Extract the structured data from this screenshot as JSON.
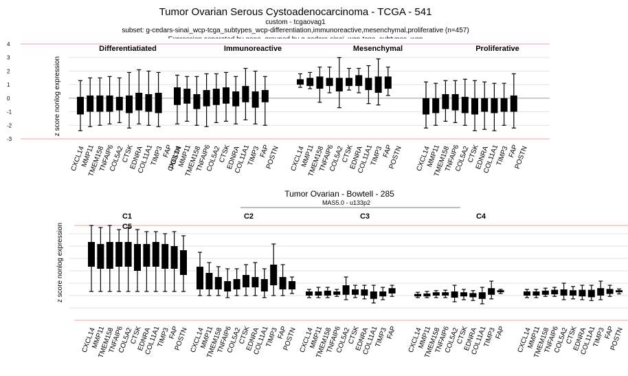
{
  "top_header": {
    "title": "Tumor Ovarian Serous Cystoadenocarcinoma - TCGA - 541",
    "line1": "custom - tcgaovag1",
    "line2": "subset: g-cedars-sinai_wcp-tcga_subtypes_wcp-differentiation,immunoreactive,mesenchymal,proliferative (n=457)",
    "line3_partial": "Expression separated by gene, grouped by g-cedars-sinai_wcp-tcga_subtypes_wcp"
  },
  "bottom_header": {
    "title": "Tumor Ovarian  - Bowtell - 285",
    "line1": "MAS5.0 - u133p2"
  },
  "colors": {
    "box": "#000000",
    "refline": "#f4a0a0",
    "grid": "#e2e2e2",
    "zero": "#9a9a9a"
  },
  "chart_data": [
    {
      "type": "boxplot",
      "ylabel": "z score nonlog expression",
      "ylim": [
        -3,
        4
      ],
      "yticks": [
        4,
        3,
        2,
        1,
        0,
        -1,
        -2,
        -3
      ],
      "genes": [
        "CXCL14",
        "MMP11",
        "TMEM158",
        "TNFAIP6",
        "COL5A2",
        "CTSK",
        "EDNRA",
        "COL11A1",
        "TIMP3",
        "FAP",
        "POSTN"
      ],
      "groups": [
        {
          "name": "Differentiatiated",
          "boxes": [
            [
              -2.4,
              -1.2,
              -0.6,
              0.1,
              1.3
            ],
            [
              -2.1,
              -1.0,
              -0.4,
              0.2,
              1.5
            ],
            [
              -2.0,
              -1.0,
              -0.5,
              0.2,
              1.5
            ],
            [
              -1.9,
              -1.0,
              -0.4,
              0.2,
              1.6
            ],
            [
              -1.8,
              -0.9,
              -0.4,
              0.1,
              1.5
            ],
            [
              -2.2,
              -1.1,
              -0.5,
              0.2,
              1.9
            ],
            [
              -1.9,
              -0.9,
              -0.3,
              0.4,
              2.1
            ],
            [
              -2.0,
              -1.0,
              -0.4,
              0.3,
              2.0
            ],
            [
              -2.1,
              -1.1,
              -0.5,
              0.4,
              1.9
            ],
            null,
            null
          ]
        },
        {
          "name": "Immunoreactive",
          "boxes": [
            [
              -1.9,
              -0.5,
              0.2,
              0.8,
              1.7
            ],
            [
              -1.7,
              -0.4,
              0.0,
              0.7,
              1.6
            ],
            [
              -2.0,
              -0.8,
              -0.3,
              0.3,
              1.6
            ],
            [
              -2.1,
              -0.6,
              -0.1,
              0.6,
              1.8
            ],
            [
              -1.8,
              -0.5,
              0.1,
              0.7,
              1.8
            ],
            [
              -1.7,
              -0.4,
              0.3,
              0.8,
              1.9
            ],
            [
              -1.9,
              -0.6,
              0.1,
              0.5,
              1.6
            ],
            [
              -1.6,
              -0.3,
              0.3,
              0.9,
              2.2
            ],
            [
              -1.9,
              -0.7,
              -0.1,
              0.5,
              2.0
            ],
            [
              -2.0,
              -0.3,
              0.2,
              0.6,
              1.6
            ],
            null
          ]
        },
        {
          "name": "Mesenchymal",
          "boxes": [
            [
              0.8,
              1.0,
              1.2,
              1.4,
              1.8
            ],
            [
              0.7,
              0.9,
              1.2,
              1.5,
              1.9
            ],
            [
              -0.3,
              0.7,
              1.2,
              1.6,
              2.3
            ],
            [
              0.4,
              0.9,
              1.2,
              1.5,
              2.3
            ],
            [
              -0.7,
              0.5,
              1.0,
              1.5,
              3.0
            ],
            [
              0.6,
              0.9,
              1.3,
              1.5,
              2.2
            ],
            [
              0.4,
              0.9,
              1.3,
              1.7,
              2.2
            ],
            [
              -0.4,
              0.6,
              1.0,
              1.5,
              2.4
            ],
            [
              -0.5,
              0.4,
              0.9,
              1.6,
              2.9
            ],
            [
              0.2,
              0.7,
              1.2,
              1.6,
              2.3
            ],
            null
          ]
        },
        {
          "name": "Proliferative",
          "boxes": [
            [
              -2.2,
              -1.2,
              -0.8,
              0.0,
              1.2
            ],
            [
              -2.0,
              -1.1,
              -0.6,
              0.0,
              1.1
            ],
            [
              -1.7,
              -0.8,
              -0.3,
              0.3,
              1.3
            ],
            [
              -1.8,
              -0.9,
              -0.3,
              0.3,
              1.3
            ],
            [
              -2.0,
              -1.1,
              -0.5,
              0.1,
              1.4
            ],
            [
              -2.4,
              -1.2,
              -0.7,
              0.0,
              1.3
            ],
            [
              -2.3,
              -1.0,
              -0.5,
              0.0,
              1.2
            ],
            [
              -2.4,
              -1.1,
              -0.6,
              0.0,
              1.1
            ],
            [
              -2.0,
              -1.0,
              -0.6,
              0.0,
              1.1
            ],
            [
              -2.2,
              -1.0,
              -0.4,
              0.2,
              1.8
            ],
            null
          ]
        }
      ]
    },
    {
      "type": "boxplot",
      "ylabel": "z score nonlog expression",
      "ylim": [
        -1.3,
        1.0
      ],
      "genes": [
        "CXCL14",
        "MMP11",
        "TMEM158",
        "TNFAIP6",
        "COL5A2",
        "CTSK",
        "EDNRA",
        "COL11A1",
        "TIMP3",
        "FAP",
        "POSTN"
      ],
      "groups": [
        {
          "name": "C1",
          "boxes": [
            [
              -0.6,
              0.0,
              0.3,
              0.6,
              1.0
            ],
            [
              -0.6,
              -0.05,
              0.25,
              0.55,
              0.95
            ],
            [
              -0.6,
              -0.05,
              0.2,
              0.6,
              1.0
            ],
            [
              -0.6,
              0.0,
              0.3,
              0.6,
              0.9
            ],
            [
              -0.6,
              0.0,
              0.3,
              0.6,
              0.95
            ],
            [
              -0.6,
              -0.1,
              0.2,
              0.55,
              0.9
            ],
            [
              -0.6,
              0.0,
              0.3,
              0.55,
              0.85
            ],
            [
              -0.6,
              0.0,
              0.3,
              0.6,
              0.85
            ],
            [
              -0.6,
              -0.05,
              0.25,
              0.55,
              0.8
            ],
            [
              -0.6,
              -0.05,
              0.25,
              0.5,
              0.85
            ],
            [
              -0.6,
              -0.2,
              0.1,
              0.4,
              0.75
            ]
          ]
        },
        {
          "name": "C2",
          "boxes": [
            [
              -0.7,
              -0.55,
              -0.35,
              0.0,
              0.35
            ],
            [
              -0.7,
              -0.55,
              -0.4,
              -0.15,
              0.1
            ],
            [
              -0.7,
              -0.55,
              -0.45,
              -0.25,
              0.0
            ],
            [
              -0.75,
              -0.6,
              -0.5,
              -0.35,
              -0.05
            ],
            [
              -0.7,
              -0.55,
              -0.45,
              -0.3,
              -0.05
            ],
            [
              -0.7,
              -0.5,
              -0.4,
              -0.2,
              0.05
            ],
            [
              -0.7,
              -0.5,
              -0.4,
              -0.25,
              0.1
            ],
            [
              -0.75,
              -0.6,
              -0.45,
              -0.3,
              -0.05
            ],
            [
              -0.7,
              -0.45,
              -0.3,
              0.05,
              0.55
            ],
            [
              -0.7,
              -0.55,
              -0.4,
              -0.25,
              0.05
            ],
            [
              -0.65,
              -0.55,
              -0.45,
              -0.35,
              -0.25
            ]
          ]
        },
        {
          "name": "C3",
          "boxes": [
            [
              -0.75,
              -0.7,
              -0.65,
              -0.6,
              -0.55
            ],
            [
              -0.75,
              -0.7,
              -0.65,
              -0.6,
              -0.5
            ],
            [
              -0.75,
              -0.7,
              -0.65,
              -0.58,
              -0.5
            ],
            [
              -0.72,
              -0.68,
              -0.65,
              -0.6,
              -0.55
            ],
            [
              -0.8,
              -0.68,
              -0.6,
              -0.45,
              -0.25
            ],
            [
              -0.75,
              -0.68,
              -0.62,
              -0.55,
              -0.45
            ],
            [
              -0.78,
              -0.7,
              -0.62,
              -0.55,
              -0.45
            ],
            [
              -0.88,
              -0.78,
              -0.7,
              -0.6,
              -0.45
            ],
            [
              -0.8,
              -0.72,
              -0.66,
              -0.6,
              -0.5
            ],
            [
              -0.72,
              -0.65,
              -0.6,
              -0.52,
              -0.45
            ]
          ]
        },
        {
          "name": "C4",
          "boxes": [
            [
              -0.75,
              -0.72,
              -0.7,
              -0.66,
              -0.62
            ],
            [
              -0.75,
              -0.72,
              -0.7,
              -0.65,
              -0.6
            ],
            [
              -0.75,
              -0.7,
              -0.66,
              -0.62,
              -0.58
            ],
            [
              -0.75,
              -0.7,
              -0.67,
              -0.62,
              -0.57
            ],
            [
              -0.85,
              -0.75,
              -0.68,
              -0.6,
              -0.45
            ],
            [
              -0.8,
              -0.72,
              -0.68,
              -0.62,
              -0.55
            ],
            [
              -0.82,
              -0.74,
              -0.7,
              -0.64,
              -0.58
            ],
            [
              -0.9,
              -0.78,
              -0.72,
              -0.62,
              -0.5
            ],
            [
              -0.78,
              -0.68,
              -0.6,
              -0.52,
              -0.35
            ],
            [
              -0.65,
              -0.62,
              -0.6,
              -0.57,
              -0.55
            ]
          ]
        },
        {
          "name": "C5",
          "boxes": [
            [
              -0.75,
              -0.7,
              -0.65,
              -0.6,
              -0.55
            ],
            [
              -0.75,
              -0.7,
              -0.66,
              -0.6,
              -0.55
            ],
            [
              -0.72,
              -0.68,
              -0.63,
              -0.58,
              -0.52
            ],
            [
              -0.72,
              -0.67,
              -0.62,
              -0.56,
              -0.5
            ],
            [
              -0.8,
              -0.7,
              -0.62,
              -0.55,
              -0.4
            ],
            [
              -0.78,
              -0.7,
              -0.64,
              -0.57,
              -0.48
            ],
            [
              -0.8,
              -0.72,
              -0.65,
              -0.56,
              -0.45
            ],
            [
              -0.82,
              -0.74,
              -0.66,
              -0.56,
              -0.45
            ],
            [
              -0.8,
              -0.7,
              -0.62,
              -0.52,
              -0.35
            ],
            [
              -0.72,
              -0.66,
              -0.6,
              -0.54,
              -0.45
            ],
            [
              -0.66,
              -0.62,
              -0.6,
              -0.57,
              -0.54
            ]
          ]
        }
      ]
    }
  ]
}
